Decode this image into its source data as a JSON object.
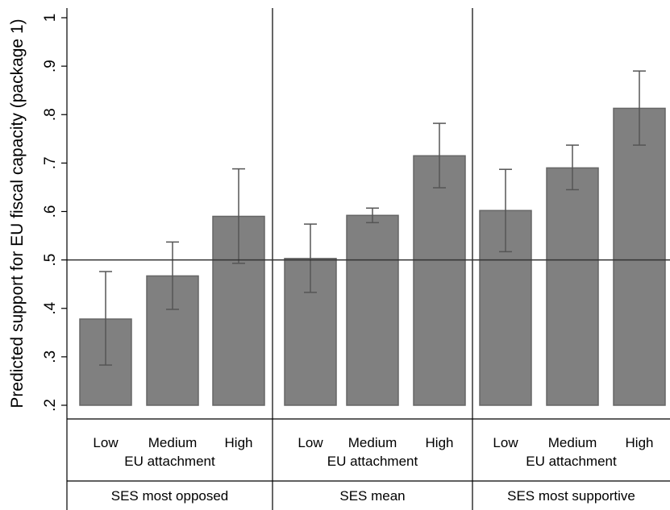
{
  "chart_data": {
    "type": "bar",
    "ylabel": "Predicted support for EU fiscal capacity (package 1)",
    "xlabel": "EU attachment",
    "ylim": [
      0.2,
      1.0
    ],
    "yticks": [
      {
        "value": 0.2,
        "label": ".2"
      },
      {
        "value": 0.3,
        "label": ".3"
      },
      {
        "value": 0.4,
        "label": ".4"
      },
      {
        "value": 0.5,
        "label": ".5"
      },
      {
        "value": 0.6,
        "label": ".6"
      },
      {
        "value": 0.7,
        "label": ".7"
      },
      {
        "value": 0.8,
        "label": ".8"
      },
      {
        "value": 0.9,
        "label": ".9"
      },
      {
        "value": 1.0,
        "label": "1"
      }
    ],
    "reference_line": 0.5,
    "bar_color": "#808080",
    "errorbar_color": "#555555",
    "categories": [
      "Low",
      "Medium",
      "High"
    ],
    "panels": [
      {
        "label": "SES most opposed",
        "bars": [
          {
            "category": "Low",
            "value": 0.378,
            "ci": [
              0.283,
              0.476
            ]
          },
          {
            "category": "Medium",
            "value": 0.467,
            "ci": [
              0.398,
              0.537
            ]
          },
          {
            "category": "High",
            "value": 0.59,
            "ci": [
              0.493,
              0.688
            ]
          }
        ]
      },
      {
        "label": "SES mean",
        "bars": [
          {
            "category": "Low",
            "value": 0.503,
            "ci": [
              0.433,
              0.574
            ]
          },
          {
            "category": "Medium",
            "value": 0.592,
            "ci": [
              0.577,
              0.607
            ]
          },
          {
            "category": "High",
            "value": 0.715,
            "ci": [
              0.649,
              0.782
            ]
          }
        ]
      },
      {
        "label": "SES most supportive",
        "bars": [
          {
            "category": "Low",
            "value": 0.602,
            "ci": [
              0.517,
              0.687
            ]
          },
          {
            "category": "Medium",
            "value": 0.69,
            "ci": [
              0.645,
              0.737
            ]
          },
          {
            "category": "High",
            "value": 0.813,
            "ci": [
              0.737,
              0.89
            ]
          }
        ]
      }
    ]
  }
}
